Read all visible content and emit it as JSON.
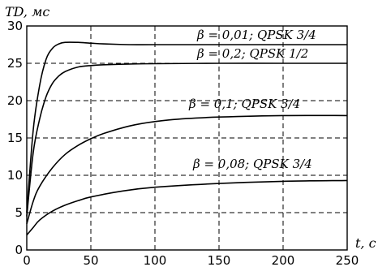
{
  "chart_data": {
    "type": "line",
    "ylabel": "TD, мс",
    "xlabel": "t, с",
    "xlim": [
      0,
      250
    ],
    "ylim": [
      0,
      30
    ],
    "xticks": [
      0,
      50,
      100,
      150,
      200,
      250
    ],
    "yticks": [
      0,
      5,
      10,
      15,
      20,
      25,
      30
    ],
    "grid": true,
    "series": [
      {
        "name": "β = 0,01; QPSK 3/4",
        "x": [
          0,
          5,
          10,
          15,
          20,
          25,
          30,
          40,
          50,
          60,
          80,
          100,
          150,
          200,
          250
        ],
        "values": [
          5,
          16,
          22,
          25.5,
          27,
          27.6,
          27.8,
          27.8,
          27.7,
          27.6,
          27.5,
          27.5,
          27.5,
          27.5,
          27.5
        ]
      },
      {
        "name": "β = 0,2; QPSK 1/2",
        "x": [
          0,
          5,
          10,
          15,
          20,
          25,
          30,
          40,
          50,
          60,
          80,
          100,
          150,
          200,
          250
        ],
        "values": [
          4.5,
          13,
          17.5,
          20.5,
          22.3,
          23.3,
          23.9,
          24.5,
          24.7,
          24.8,
          24.9,
          24.95,
          25,
          25,
          25
        ]
      },
      {
        "name": "β = 0,1; QPSK 3/4",
        "x": [
          0,
          5,
          10,
          20,
          30,
          40,
          50,
          60,
          80,
          100,
          125,
          150,
          200,
          250
        ],
        "values": [
          3.5,
          6.5,
          8.5,
          11,
          12.8,
          14,
          14.9,
          15.6,
          16.6,
          17.2,
          17.6,
          17.8,
          18,
          18
        ]
      },
      {
        "name": "β = 0,08; QPSK 3/4",
        "x": [
          0,
          5,
          10,
          20,
          30,
          40,
          50,
          75,
          100,
          150,
          200,
          250
        ],
        "values": [
          2,
          3,
          4,
          5.2,
          6,
          6.6,
          7.1,
          7.9,
          8.4,
          8.9,
          9.2,
          9.3
        ]
      }
    ]
  }
}
